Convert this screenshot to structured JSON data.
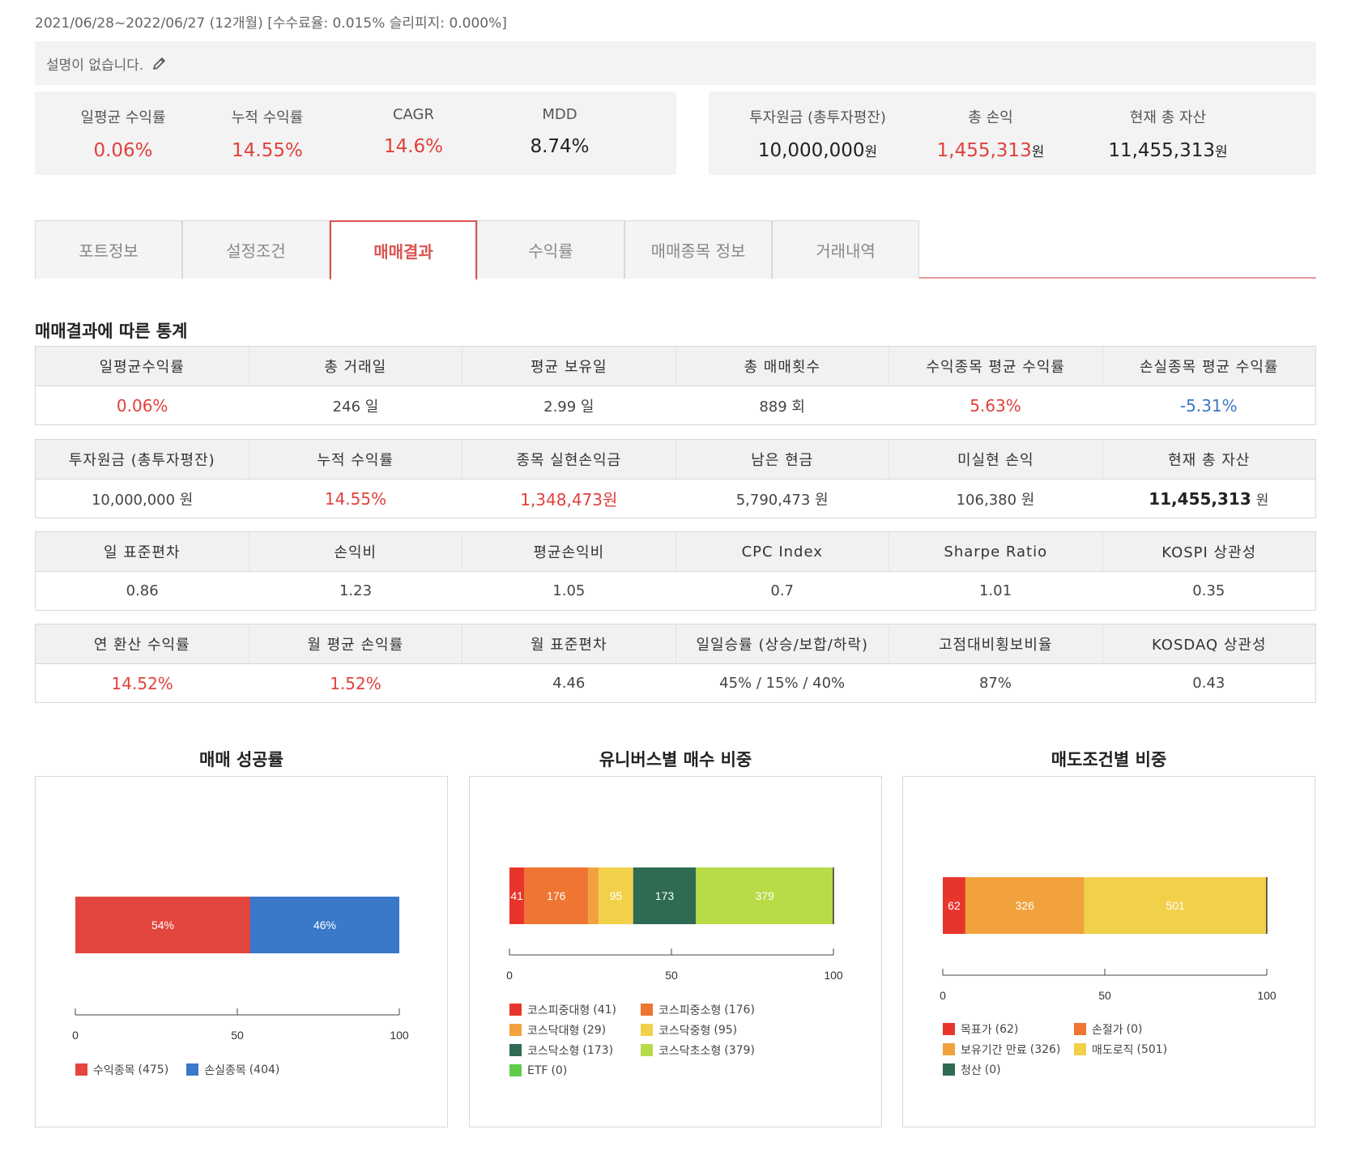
{
  "header": {
    "period": "2021/06/28~2022/06/27",
    "months": "(12개월)",
    "fees": "[수수료율: 0.015% 슬리피지: 0.000%]",
    "description": "설명이 없습니다."
  },
  "summary_left": [
    {
      "label": "일평균 수익률",
      "value": "0.06%",
      "color": "red"
    },
    {
      "label": "누적 수익률",
      "value": "14.55%",
      "color": "red"
    },
    {
      "label": "CAGR",
      "value": "14.6%",
      "color": "red"
    },
    {
      "label": "MDD",
      "value": "8.74%",
      "color": "black"
    }
  ],
  "summary_right": [
    {
      "label": "투자원금 (총투자평잔)",
      "value": "10,000,000",
      "unit": "원",
      "color": "black"
    },
    {
      "label": "총 손익",
      "value": "1,455,313",
      "unit": "원",
      "color": "red"
    },
    {
      "label": "현재 총 자산",
      "value": "11,455,313",
      "unit": "원",
      "color": "black"
    }
  ],
  "tabs": [
    {
      "label": "포트정보",
      "active": false
    },
    {
      "label": "설정조건",
      "active": false
    },
    {
      "label": "매매결과",
      "active": true
    },
    {
      "label": "수익률",
      "active": false
    },
    {
      "label": "매매종목 정보",
      "active": false
    },
    {
      "label": "거래내역",
      "active": false
    }
  ],
  "section_title": "매매결과에 따른 통계",
  "stat_tables": [
    {
      "headers": [
        "일평균수익률",
        "총 거래일",
        "평균 보유일",
        "총 매매횟수",
        "수익종목 평균 수익률",
        "손실종목 평균 수익률"
      ],
      "values": [
        {
          "text": "0.06%",
          "style": "red"
        },
        {
          "text": "246 일",
          "style": ""
        },
        {
          "text": "2.99 일",
          "style": ""
        },
        {
          "text": "889 회",
          "style": ""
        },
        {
          "text": "5.63%",
          "style": "red"
        },
        {
          "text": "-5.31%",
          "style": "blue"
        }
      ]
    },
    {
      "headers": [
        "투자원금 (총투자평잔)",
        "누적 수익률",
        "종목 실현손익금",
        "남은 현금",
        "미실현 손익",
        "현재 총 자산"
      ],
      "values": [
        {
          "text": "10,000,000 원",
          "style": ""
        },
        {
          "text": "14.55%",
          "style": "red"
        },
        {
          "text": "1,348,473원",
          "style": "red"
        },
        {
          "text": "5,790,473 원",
          "style": ""
        },
        {
          "text": "106,380 원",
          "style": ""
        },
        {
          "text": "11,455,313",
          "unit": "원",
          "style": "bold"
        }
      ]
    },
    {
      "headers": [
        "일 표준편차",
        "손익비",
        "평균손익비",
        "CPC Index",
        "Sharpe Ratio",
        "KOSPI 상관성"
      ],
      "values": [
        {
          "text": "0.86",
          "style": ""
        },
        {
          "text": "1.23",
          "style": ""
        },
        {
          "text": "1.05",
          "style": ""
        },
        {
          "text": "0.7",
          "style": ""
        },
        {
          "text": "1.01",
          "style": ""
        },
        {
          "text": "0.35",
          "style": ""
        }
      ]
    },
    {
      "headers": [
        "연 환산 수익률",
        "월 평균 손익률",
        "월 표준편차",
        "일일승률 (상승/보합/하락)",
        "고점대비횡보비율",
        "KOSDAQ 상관성"
      ],
      "values": [
        {
          "text": "14.52%",
          "style": "red"
        },
        {
          "text": "1.52%",
          "style": "red"
        },
        {
          "text": "4.46",
          "style": ""
        },
        {
          "text": "45% / 15% / 40%",
          "style": ""
        },
        {
          "text": "87%",
          "style": ""
        },
        {
          "text": "0.43",
          "style": ""
        }
      ]
    }
  ],
  "chart_data": [
    {
      "type": "bar",
      "orientation": "horizontal-stacked-percent",
      "title": "매매 성공률",
      "xlim": [
        0,
        100
      ],
      "xticks": [
        0,
        50,
        100
      ],
      "series": [
        {
          "name": "수익종목",
          "count": 475,
          "value": 54,
          "label": "54%",
          "color": "#e2463f"
        },
        {
          "name": "손실종목",
          "count": 404,
          "value": 46,
          "label": "46%",
          "color": "#3a78c9"
        }
      ]
    },
    {
      "type": "bar",
      "orientation": "horizontal-stacked-percent",
      "title": "유니버스별 매수 비중",
      "xlim": [
        0,
        100
      ],
      "xticks": [
        0,
        50,
        100
      ],
      "series": [
        {
          "name": "코스피중대형",
          "count": 41,
          "label": "41",
          "color": "#e8352b"
        },
        {
          "name": "코스피중소형",
          "count": 176,
          "label": "176",
          "color": "#ee7632"
        },
        {
          "name": "코스닥대형",
          "count": 29,
          "label": "",
          "color": "#f1a23c"
        },
        {
          "name": "코스닥중형",
          "count": 95,
          "label": "95",
          "color": "#f2d14a"
        },
        {
          "name": "코스닥소형",
          "count": 173,
          "label": "173",
          "color": "#2e6b52"
        },
        {
          "name": "코스닥초소형",
          "count": 379,
          "label": "379",
          "color": "#b8db48"
        },
        {
          "name": "ETF",
          "count": 0,
          "label": "",
          "color": "#5fcc4a"
        }
      ]
    },
    {
      "type": "bar",
      "orientation": "horizontal-stacked-percent",
      "title": "매도조건별 비중",
      "xlim": [
        0,
        100
      ],
      "xticks": [
        0,
        50,
        100
      ],
      "series": [
        {
          "name": "목표가",
          "count": 62,
          "label": "62",
          "color": "#e8352b"
        },
        {
          "name": "손절가",
          "count": 0,
          "label": "",
          "color": "#ee7632"
        },
        {
          "name": "보유기간 만료",
          "count": 326,
          "label": "326",
          "color": "#f1a23c"
        },
        {
          "name": "매도로직",
          "count": 501,
          "label": "501",
          "color": "#f2d14a"
        },
        {
          "name": "청산",
          "count": 0,
          "label": "",
          "color": "#2e6b52"
        }
      ]
    }
  ]
}
